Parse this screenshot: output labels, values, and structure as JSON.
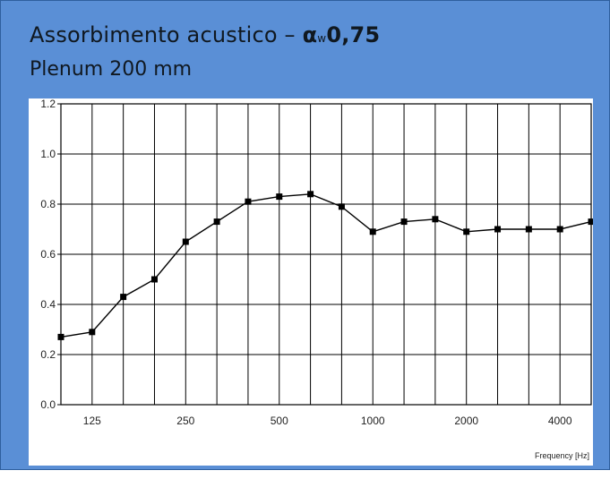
{
  "header": {
    "title_prefix": "Assorbimento acustico – ",
    "alpha_symbol": "α",
    "alpha_subscript": "w",
    "title_value": "0,75",
    "subtitle": "Plenum 200 mm"
  },
  "chart_data": {
    "type": "line",
    "title": "Assorbimento acustico – αw 0,75",
    "subtitle": "Plenum 200 mm",
    "xlabel": "Frequency [Hz]",
    "ylabel": "",
    "x_scale": "log",
    "x": [
      100,
      125,
      160,
      200,
      250,
      315,
      400,
      500,
      630,
      800,
      1000,
      1250,
      1600,
      2000,
      2500,
      3150,
      4000,
      5000
    ],
    "series": [
      {
        "values": [
          0.27,
          0.29,
          0.43,
          0.5,
          0.65,
          0.73,
          0.81,
          0.83,
          0.84,
          0.79,
          0.69,
          0.73,
          0.74,
          0.69,
          0.7,
          0.7,
          0.7,
          0.73
        ]
      }
    ],
    "ylim": [
      0.0,
      1.2
    ],
    "y_ticks": [
      "0.0",
      "0.2",
      "0.4",
      "0.6",
      "0.8",
      "1.0",
      "1.2"
    ],
    "x_tick_labels": [
      {
        "x": 125,
        "label": "125"
      },
      {
        "x": 250,
        "label": "250"
      },
      {
        "x": 500,
        "label": "500"
      },
      {
        "x": 1000,
        "label": "1000"
      },
      {
        "x": 2000,
        "label": "2000"
      },
      {
        "x": 4000,
        "label": "4000"
      }
    ],
    "grid": true,
    "colors": {
      "line": "#000000",
      "marker": "#000000",
      "grid": "#000000",
      "frame_bg": "#5a8fd6"
    }
  }
}
